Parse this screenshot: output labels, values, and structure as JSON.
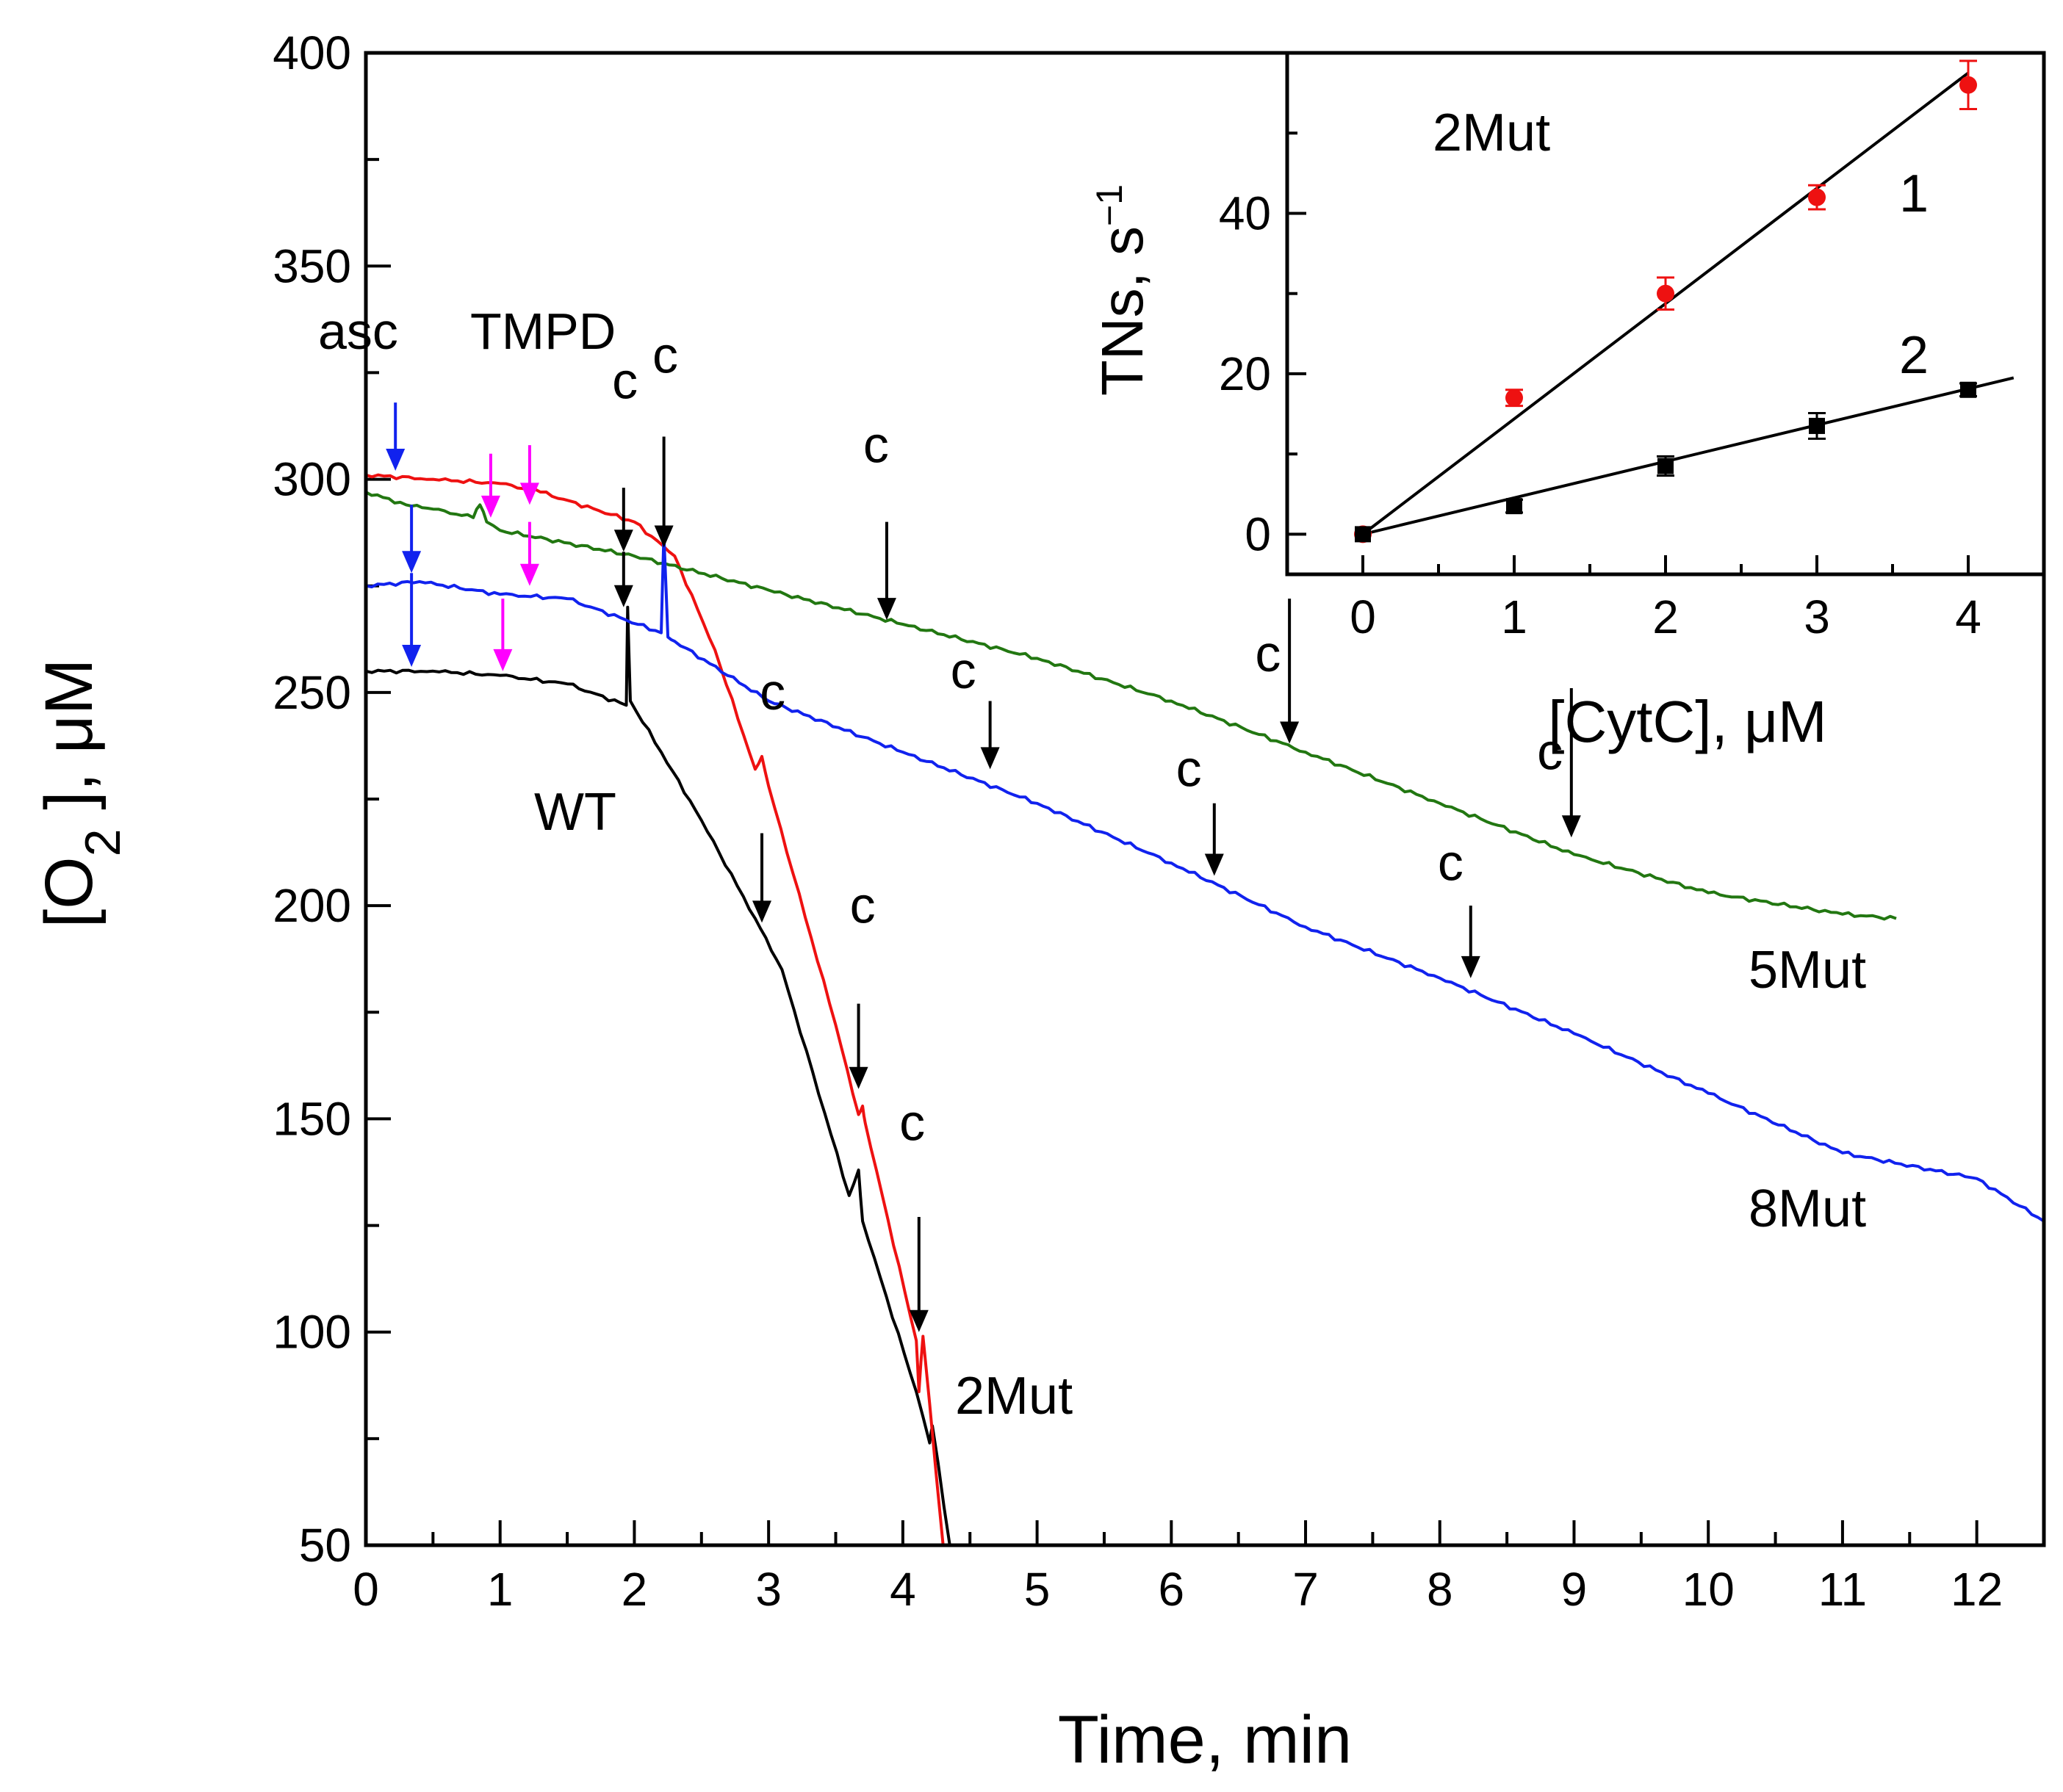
{
  "chart_data": [
    {
      "type": "line",
      "xlabel": "Time, min",
      "ylabel": "[O2 ], μM",
      "xlim": [
        0,
        12.5
      ],
      "ylim": [
        50,
        400
      ],
      "xticks": [
        "0",
        "1",
        "2",
        "3",
        "4",
        "5",
        "6",
        "7",
        "8",
        "9",
        "10",
        "11",
        "12"
      ],
      "yticks": [
        "50",
        "100",
        "150",
        "200",
        "250",
        "300",
        "350",
        "400"
      ],
      "series": [
        {
          "name": "WT",
          "color": "#000000",
          "x": [
            0,
            0.5,
            1,
            1.5,
            1.94,
            1.95,
            1.97,
            2.2,
            2.5,
            2.9,
            3.1,
            3.6,
            3.67,
            3.7,
            4.1,
            4.2,
            4.22,
            4.35
          ],
          "y": [
            255,
            255,
            254,
            252,
            247,
            270,
            248,
            236,
            220,
            197,
            185,
            132,
            138,
            126,
            86,
            74,
            78,
            50
          ]
        },
        {
          "name": "2Mut",
          "color": "#ee1111",
          "x": [
            0,
            0.5,
            1,
            1.3,
            2,
            2.3,
            2.6,
            2.9,
            2.95,
            3,
            3.5,
            3.67,
            3.7,
            3.72,
            4.1,
            4.12,
            4.15,
            4.3
          ],
          "y": [
            301,
            300,
            299,
            297,
            290,
            282,
            260,
            232,
            235,
            228,
            172,
            151,
            153,
            149,
            98,
            86,
            99,
            50
          ]
        },
        {
          "name": "5Mut",
          "color": "#227711",
          "x": [
            0,
            0.3,
            0.5,
            0.8,
            0.85,
            0.9,
            1,
            2,
            3,
            4,
            5,
            6,
            7,
            8,
            9,
            10,
            11,
            11.4
          ],
          "y": [
            297,
            294,
            293,
            291,
            294,
            290,
            288,
            282,
            274,
            266,
            258,
            248,
            236,
            224,
            212,
            203,
            198,
            197
          ]
        },
        {
          "name": "8Mut",
          "color": "#1122ee",
          "x": [
            0,
            0.4,
            1,
            1.5,
            2.2,
            2.22,
            2.25,
            2.3,
            3,
            4,
            5,
            6,
            7,
            8,
            9,
            10,
            11,
            12,
            12.5
          ],
          "y": [
            275,
            276,
            273,
            272,
            264,
            287,
            263,
            262,
            248,
            236,
            224,
            210,
            195,
            183,
            170,
            156,
            142,
            136,
            126
          ]
        }
      ],
      "annotations": [
        "asc",
        "TMPD",
        "c",
        "WT",
        "2Mut",
        "5Mut",
        "8Mut"
      ]
    },
    {
      "type": "scatter",
      "title": "2Mut",
      "xlabel": "[CytC], μM",
      "ylabel": "TNs, s⁻¹",
      "xlim": [
        -0.5,
        4.5
      ],
      "ylim": [
        -5,
        60
      ],
      "xticks": [
        "0",
        "1",
        "2",
        "3",
        "4"
      ],
      "yticks": [
        "0",
        "20",
        "40"
      ],
      "series": [
        {
          "name": "1",
          "color": "#ee1111",
          "marker": "circle",
          "x": [
            0,
            1,
            2,
            3,
            4
          ],
          "y": [
            0,
            17,
            30,
            42,
            56
          ],
          "err": [
            0,
            1,
            2,
            1.5,
            3
          ],
          "fit": {
            "x": [
              0,
              4
            ],
            "y": [
              0,
              57.5
            ]
          }
        },
        {
          "name": "2",
          "color": "#000000",
          "marker": "square",
          "x": [
            0,
            1,
            2,
            3,
            4
          ],
          "y": [
            0,
            3.5,
            8.5,
            13.5,
            18
          ],
          "err": [
            0,
            0.8,
            1.2,
            1.6,
            0.8
          ],
          "fit": {
            "x": [
              0,
              4.3
            ],
            "y": [
              0,
              19.5
            ]
          }
        }
      ]
    }
  ],
  "labels": {
    "asc": "asc",
    "tmpd": "TMPD",
    "c": "c",
    "wt": "WT",
    "mut2": "2Mut",
    "mut5": "5Mut",
    "mut8": "8Mut",
    "inset_title": "2Mut",
    "inset_line1": "1",
    "inset_line2": "2"
  },
  "colors": {
    "blue": "#1122ee",
    "magenta": "#ff00ff",
    "black": "#000000",
    "red": "#ee1111",
    "green": "#227711"
  }
}
